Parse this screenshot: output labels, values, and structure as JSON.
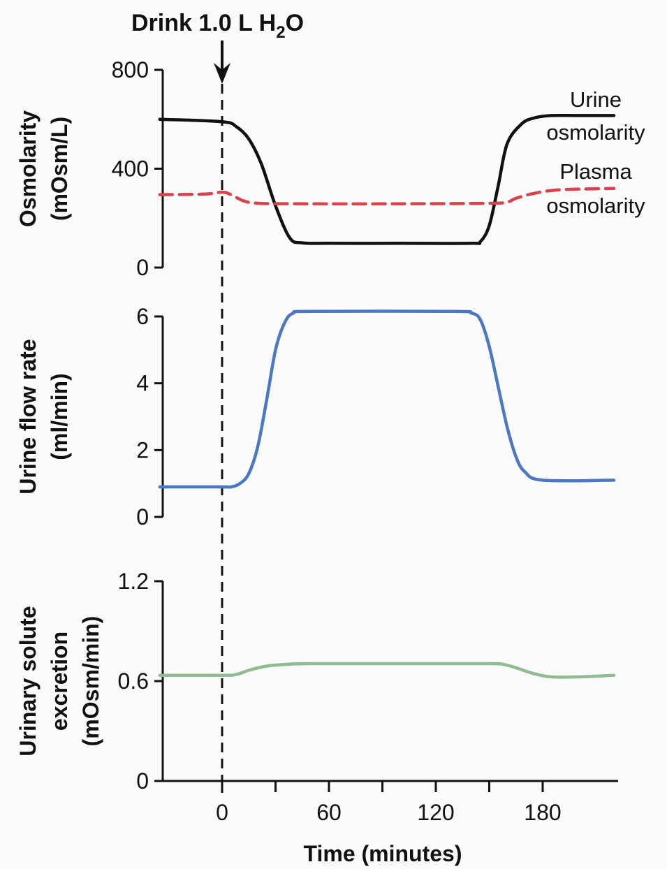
{
  "annotation": {
    "drink_prefix": "Drink 1.0 L H",
    "drink_subscript": "2",
    "drink_suffix": "O"
  },
  "x_axis": {
    "label": "Time (minutes)",
    "ticks": [
      0,
      30,
      60,
      90,
      120,
      150,
      180
    ],
    "tick_labels": [
      "0",
      "60",
      "120",
      "180"
    ]
  },
  "chart_data": [
    {
      "type": "line",
      "ylabel_lines": [
        "Osmolarity",
        "(mOsm/L)"
      ],
      "ylim": [
        0,
        800
      ],
      "yticks": [
        0,
        400,
        800
      ],
      "ytick_labels": [
        "0",
        "400",
        "800"
      ],
      "xlim": [
        -35,
        215
      ],
      "series": [
        {
          "name": "Urine osmolarity",
          "label_lines": [
            "Urine",
            "osmolarity"
          ],
          "color": "#111111",
          "dashed": false,
          "x": [
            -35,
            0,
            8,
            15,
            22,
            30,
            38,
            45,
            60,
            100,
            140,
            145,
            150,
            155,
            160,
            168,
            175,
            185,
            200,
            220
          ],
          "y": [
            600,
            590,
            570,
            520,
            420,
            250,
            120,
            100,
            98,
            98,
            98,
            105,
            170,
            330,
            500,
            580,
            605,
            615,
            615,
            615
          ]
        },
        {
          "name": "Plasma osmolarity",
          "label_lines": [
            "Plasma",
            "osmolarity"
          ],
          "color": "#d9434c",
          "dashed": true,
          "x": [
            -35,
            -10,
            0,
            5,
            12,
            20,
            40,
            100,
            150,
            160,
            165,
            175,
            190,
            220
          ],
          "y": [
            295,
            297,
            305,
            295,
            270,
            260,
            258,
            258,
            260,
            265,
            280,
            300,
            315,
            320
          ]
        }
      ]
    },
    {
      "type": "line",
      "ylabel_lines": [
        "Urine flow rate",
        "(ml/min)"
      ],
      "ylim": [
        0,
        6
      ],
      "yticks": [
        0,
        2,
        4,
        6
      ],
      "ytick_labels": [
        "0",
        "2",
        "4",
        "6"
      ],
      "xlim": [
        -35,
        215
      ],
      "series": [
        {
          "name": "Urine flow rate",
          "color": "#4a78c4",
          "dashed": false,
          "x": [
            -35,
            0,
            5,
            10,
            15,
            20,
            25,
            30,
            35,
            40,
            50,
            130,
            140,
            145,
            150,
            155,
            160,
            165,
            170,
            180,
            220
          ],
          "y": [
            0.9,
            0.9,
            0.9,
            1.0,
            1.3,
            2.1,
            3.5,
            5.0,
            5.8,
            6.1,
            6.15,
            6.15,
            6.1,
            5.9,
            5.1,
            3.9,
            2.7,
            1.8,
            1.35,
            1.1,
            1.1
          ]
        }
      ]
    },
    {
      "type": "line",
      "ylabel_lines": [
        "Urinary solute",
        "excretion",
        "(mOsm/min)"
      ],
      "ylim": [
        0,
        1.2
      ],
      "yticks": [
        0,
        0.6,
        1.2
      ],
      "ytick_labels": [
        "0",
        "0.6",
        "1.2"
      ],
      "xlim": [
        -35,
        215
      ],
      "series": [
        {
          "name": "Urinary solute excretion",
          "color": "#8fbc92",
          "dashed": false,
          "x": [
            -35,
            0,
            8,
            15,
            25,
            35,
            50,
            100,
            150,
            158,
            165,
            175,
            185,
            200,
            220
          ],
          "y": [
            0.635,
            0.635,
            0.64,
            0.665,
            0.69,
            0.7,
            0.705,
            0.705,
            0.705,
            0.7,
            0.68,
            0.645,
            0.625,
            0.625,
            0.635
          ]
        }
      ]
    }
  ]
}
